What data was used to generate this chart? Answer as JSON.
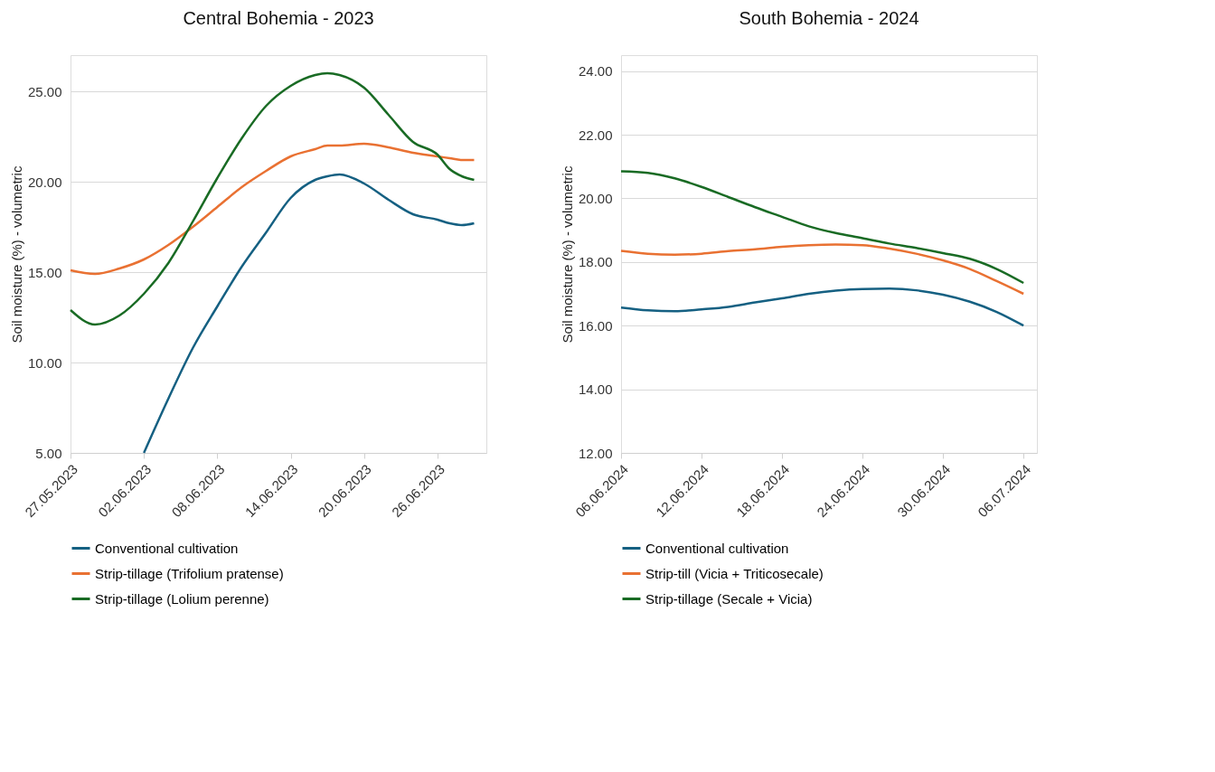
{
  "chart_data": [
    {
      "type": "line",
      "title": "Central Bohemia - 2023",
      "ylabel": "Soil moisture (%) - volumetric",
      "x": [
        "2023-05-27",
        "2023-05-29",
        "2023-05-31",
        "2023-06-02",
        "2023-06-04",
        "2023-06-06",
        "2023-06-08",
        "2023-06-10",
        "2023-06-12",
        "2023-06-14",
        "2023-06-16",
        "2023-06-17",
        "2023-06-18",
        "2023-06-20",
        "2023-06-22",
        "2023-06-24",
        "2023-06-26",
        "2023-06-27",
        "2023-06-28",
        "2023-06-29"
      ],
      "series": [
        {
          "name": "Conventional cultivation",
          "color": "#156082",
          "values": [
            null,
            null,
            null,
            5.0,
            8.0,
            10.8,
            13.1,
            15.3,
            17.2,
            19.1,
            20.1,
            20.3,
            20.4,
            19.9,
            19.0,
            18.2,
            17.9,
            17.7,
            17.6,
            17.7
          ]
        },
        {
          "name": "Strip-tillage (Trifolium pratense)",
          "color": "#e97132",
          "values": [
            15.1,
            14.9,
            15.2,
            15.7,
            16.5,
            17.5,
            18.6,
            19.7,
            20.6,
            21.4,
            21.8,
            22.0,
            22.0,
            22.1,
            21.9,
            21.6,
            21.4,
            21.3,
            21.2,
            21.2
          ]
        },
        {
          "name": "Strip-tillage (Lolium perenne)",
          "color": "#196b24",
          "values": [
            12.9,
            12.1,
            12.6,
            13.8,
            15.5,
            17.8,
            20.2,
            22.4,
            24.2,
            25.3,
            25.9,
            26.0,
            25.9,
            25.2,
            23.7,
            22.2,
            21.5,
            20.7,
            20.3,
            20.1
          ]
        }
      ],
      "xlim": [
        "2023-05-27",
        "2023-06-30"
      ],
      "xticks": [
        {
          "value": "2023-05-27",
          "label": "27.05.2023"
        },
        {
          "value": "2023-06-02",
          "label": "02.06.2023"
        },
        {
          "value": "2023-06-08",
          "label": "08.06.2023"
        },
        {
          "value": "2023-06-14",
          "label": "14.06.2023"
        },
        {
          "value": "2023-06-20",
          "label": "20.06.2023"
        },
        {
          "value": "2023-06-26",
          "label": "26.06.2023"
        }
      ],
      "ylim": [
        5,
        27
      ],
      "yticks": [
        {
          "value": 5,
          "label": "5.00"
        },
        {
          "value": 10,
          "label": "10.00"
        },
        {
          "value": 15,
          "label": "15.00"
        },
        {
          "value": 20,
          "label": "20.00"
        },
        {
          "value": 25,
          "label": "25.00"
        }
      ],
      "grid": "y",
      "legend": "bottom",
      "marker": "none",
      "line_style": "solid"
    },
    {
      "type": "line",
      "title": "South Bohemia - 2024",
      "ylabel": "Soil moisture (%) - volumetric",
      "x": [
        "2024-06-06",
        "2024-06-08",
        "2024-06-10",
        "2024-06-12",
        "2024-06-14",
        "2024-06-16",
        "2024-06-18",
        "2024-06-20",
        "2024-06-22",
        "2024-06-24",
        "2024-06-26",
        "2024-06-28",
        "2024-06-30",
        "2024-07-02",
        "2024-07-04",
        "2024-07-06"
      ],
      "series": [
        {
          "name": "Conventional cultivation",
          "color": "#156082",
          "values": [
            16.57,
            16.48,
            16.45,
            16.51,
            16.59,
            16.73,
            16.86,
            17.0,
            17.1,
            17.15,
            17.16,
            17.11,
            16.97,
            16.75,
            16.43,
            16.0
          ]
        },
        {
          "name": "Strip-till (Vicia + Triticosecale)",
          "color": "#e97132",
          "values": [
            18.35,
            18.26,
            18.23,
            18.26,
            18.34,
            18.4,
            18.48,
            18.53,
            18.55,
            18.53,
            18.42,
            18.26,
            18.05,
            17.78,
            17.4,
            17.0
          ]
        },
        {
          "name": "Strip-tillage (Secale + Vicia)",
          "color": "#196b24",
          "values": [
            20.85,
            20.8,
            20.63,
            20.36,
            20.04,
            19.72,
            19.42,
            19.12,
            18.91,
            18.75,
            18.58,
            18.44,
            18.28,
            18.1,
            17.78,
            17.34
          ]
        }
      ],
      "xlim": [
        "2024-06-06",
        "2024-07-07"
      ],
      "xticks": [
        {
          "value": "2024-06-06",
          "label": "06.06.2024"
        },
        {
          "value": "2024-06-12",
          "label": "12.06.2024"
        },
        {
          "value": "2024-06-18",
          "label": "18.06.2024"
        },
        {
          "value": "2024-06-24",
          "label": "24.06.2024"
        },
        {
          "value": "2024-06-30",
          "label": "30.06.2024"
        },
        {
          "value": "2024-07-06",
          "label": "06.07.2024"
        }
      ],
      "ylim": [
        12,
        24.5
      ],
      "yticks": [
        {
          "value": 12,
          "label": "12.00"
        },
        {
          "value": 14,
          "label": "14.00"
        },
        {
          "value": 16,
          "label": "16.00"
        },
        {
          "value": 18,
          "label": "18.00"
        },
        {
          "value": 20,
          "label": "20.00"
        },
        {
          "value": 22,
          "label": "22.00"
        },
        {
          "value": 24,
          "label": "24.00"
        }
      ],
      "grid": "y",
      "legend": "bottom",
      "marker": "none",
      "line_style": "solid"
    }
  ]
}
